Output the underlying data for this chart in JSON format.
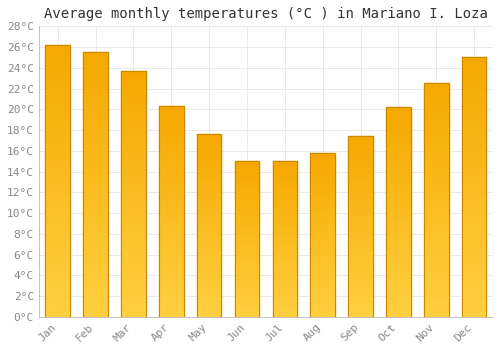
{
  "title": "Average monthly temperatures (°C ) in Mariano I. Loza",
  "months": [
    "Jan",
    "Feb",
    "Mar",
    "Apr",
    "May",
    "Jun",
    "Jul",
    "Aug",
    "Sep",
    "Oct",
    "Nov",
    "Dec"
  ],
  "temperatures": [
    26.2,
    25.5,
    23.7,
    20.3,
    17.6,
    15.0,
    15.0,
    15.8,
    17.4,
    20.2,
    22.5,
    25.0
  ],
  "bar_color_top": "#F5A800",
  "bar_color_bottom": "#FFD040",
  "bar_edge_color": "#CC8800",
  "ylim": [
    0,
    28
  ],
  "yticks": [
    0,
    2,
    4,
    6,
    8,
    10,
    12,
    14,
    16,
    18,
    20,
    22,
    24,
    26,
    28
  ],
  "bg_color": "#FFFFFF",
  "grid_color": "#E0E0E0",
  "title_fontsize": 10,
  "tick_fontsize": 8,
  "font_family": "monospace"
}
